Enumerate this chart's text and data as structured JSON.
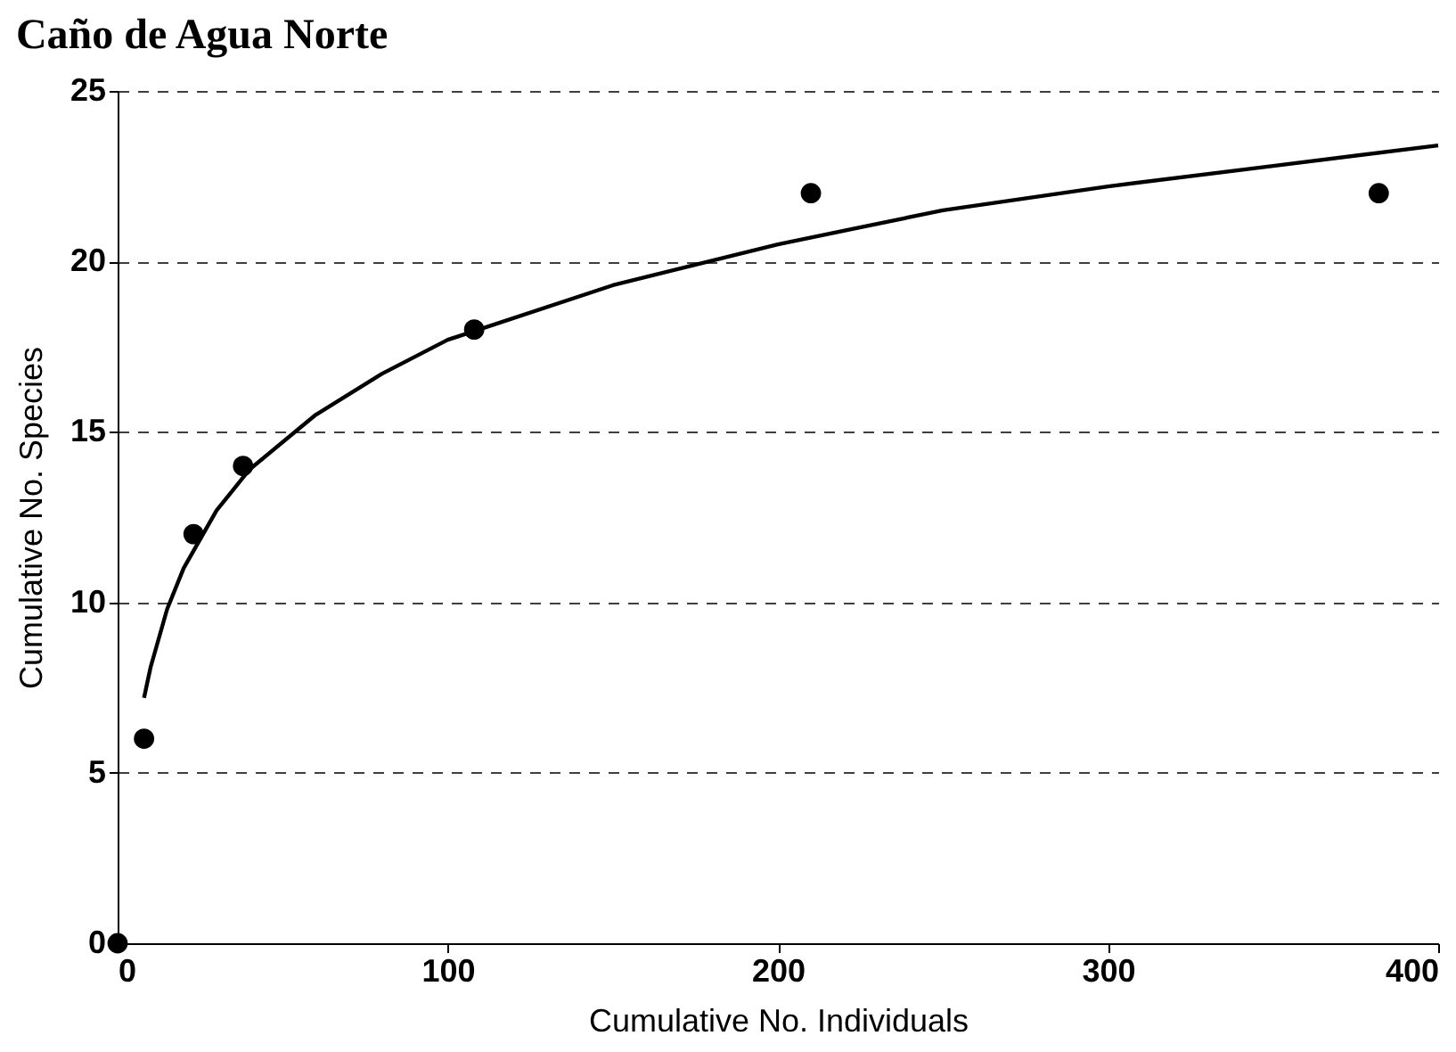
{
  "chart_data": {
    "type": "scatter",
    "title": "Caño de Agua Norte",
    "xlabel": "Cumulative No. Individuals",
    "ylabel": "Cumulative No. Species",
    "series": [
      {
        "color": "#000000",
        "marker": "circle",
        "x": [
          0,
          8,
          23,
          38,
          108,
          210,
          382
        ],
        "values": [
          0,
          6,
          12,
          14,
          18,
          22,
          22
        ]
      },
      {
        "type": "line",
        "marker": "none",
        "color": "#000000",
        "x": [
          8,
          10,
          15,
          20,
          30,
          40,
          60,
          80,
          100,
          150,
          200,
          250,
          300,
          350,
          400
        ],
        "values": [
          7.2,
          8.1,
          9.8,
          11.0,
          12.7,
          13.9,
          15.5,
          16.7,
          17.7,
          19.3,
          20.5,
          21.5,
          22.2,
          22.8,
          23.4
        ]
      }
    ],
    "xlim": [
      0,
      400
    ],
    "xticks": [
      0,
      100,
      200,
      300,
      400
    ],
    "ylim": [
      0,
      25
    ],
    "yticks": [
      0,
      5,
      10,
      15,
      20,
      25
    ],
    "grid": "y",
    "line_style": "solid"
  }
}
